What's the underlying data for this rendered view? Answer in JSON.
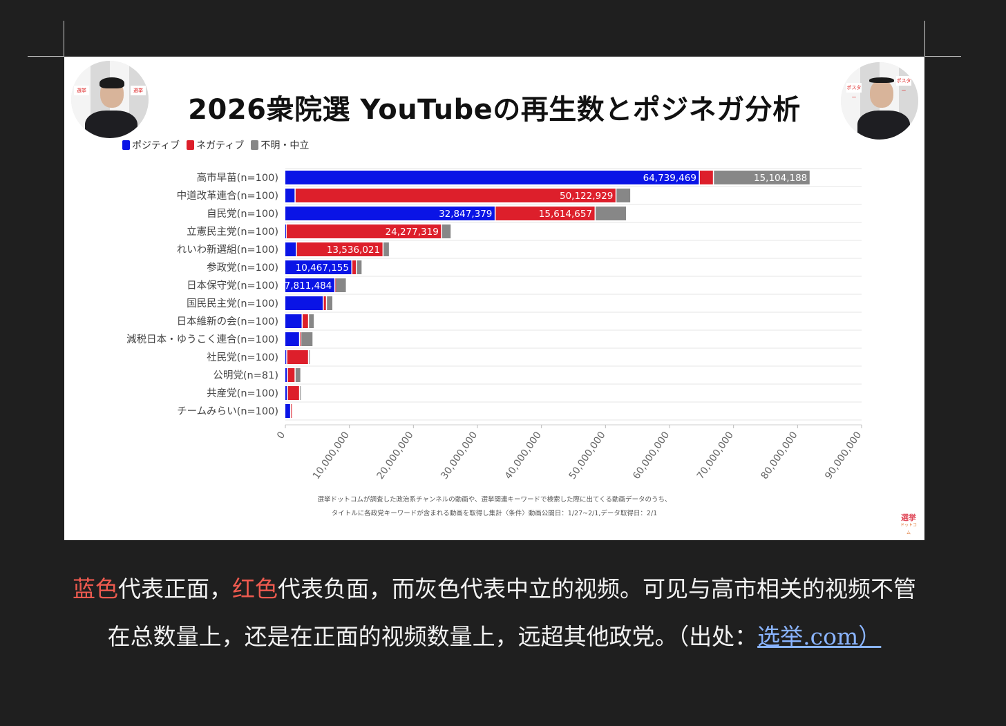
{
  "slide": {
    "title": "2026衆院選 YouTubeの再生数とポジネガ分析",
    "note_line1": "選挙ドットコムが調査した政治系チャンネルの動画や、選挙関連キーワードで検索した際に出てくる動画データのうち、",
    "note_line2": "タイトルに各政党キーワードが含まれる動画を取得し集計〈条件〉動画公開日：1/27~2/1,データ取得日：2/1",
    "brand_logo": "選挙",
    "brand_sub": "ドットコム",
    "avatar_left_tiles": [
      "選挙",
      "選挙"
    ],
    "avatar_right_tiles": [
      "ポスター",
      "ポスター"
    ]
  },
  "chart_data": {
    "type": "bar",
    "orientation": "horizontal",
    "stacked": true,
    "categories": [
      "高市早苗(n=100)",
      "中道改革連合(n=100)",
      "自民党(n=100)",
      "立憲民主党(n=100)",
      "れいわ新選組(n=100)",
      "参政党(n=100)",
      "日本保守党(n=100)",
      "国民民主党(n=100)",
      "日本維新の会(n=100)",
      "減税日本・ゆうこく連合(n=100)",
      "社民党(n=100)",
      "公明党(n=81)",
      "共産党(n=100)",
      "チームみらい(n=100)"
    ],
    "series": [
      {
        "name": "ポジティブ",
        "color": "#0a14e6",
        "values": [
          64739469,
          1600000,
          32847379,
          200000,
          1800000,
          10467155,
          7811484,
          6000000,
          2700000,
          2300000,
          300000,
          400000,
          400000,
          900000
        ],
        "labels": [
          "64,739,469",
          "",
          "32,847,379",
          "",
          "",
          "10,467,155",
          "7,811,484",
          "",
          "",
          "",
          "",
          "",
          "",
          ""
        ]
      },
      {
        "name": "ネガティブ",
        "color": "#dd1f2b",
        "values": [
          2200000,
          50122929,
          15614657,
          24277319,
          13536021,
          700000,
          100000,
          500000,
          1000000,
          200000,
          3400000,
          1200000,
          1900000,
          100000
        ],
        "labels": [
          "",
          "50,122,929",
          "15,614,657",
          "24,277,319",
          "13,536,021",
          "",
          "",
          "",
          "",
          "",
          "",
          "",
          "",
          ""
        ]
      },
      {
        "name": "不明・中立",
        "color": "#878787",
        "values": [
          15104188,
          2300000,
          4900000,
          1500000,
          1000000,
          900000,
          1700000,
          1000000,
          900000,
          1900000,
          100000,
          900000,
          200000,
          0
        ],
        "labels": [
          "15,104,188",
          "",
          "",
          "",
          "",
          "",
          "",
          "",
          "",
          "",
          "",
          "",
          "",
          ""
        ]
      }
    ],
    "xlim": [
      0,
      90000000
    ],
    "xticks": [
      "0",
      "10,000,000",
      "20,000,000",
      "30,000,000",
      "40,000,000",
      "50,000,000",
      "60,000,000",
      "70,000,000",
      "80,000,000",
      "90,000,000"
    ],
    "tick_values": [
      0,
      10000000,
      20000000,
      30000000,
      40000000,
      50000000,
      60000000,
      70000000,
      80000000,
      90000000
    ],
    "grid": true,
    "legend_position": "top-left",
    "xlabel": "",
    "ylabel": ""
  },
  "caption": {
    "blue_word": "蓝色",
    "part1": "代表正面，",
    "red_word": "红色",
    "part2": "代表负面，而灰色代表中立的视频。可见与高市相关的视频不管在总数量上，还是在正面的视频数量上，远超其他政党。（出处：",
    "link_text": "选举.com）"
  }
}
